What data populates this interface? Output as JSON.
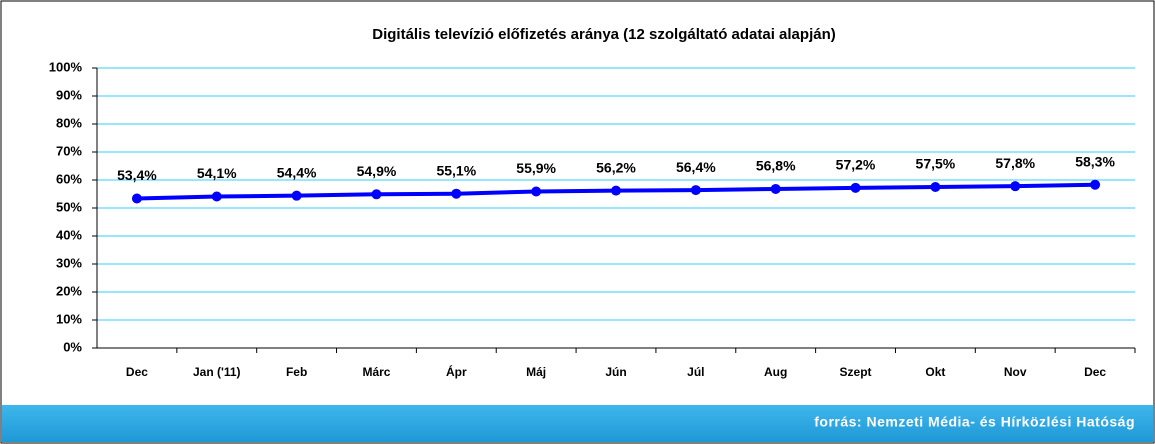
{
  "chart_data": {
    "type": "line",
    "title": "Digitális televízió előfizetés aránya (12 szolgáltató adatai alapján)",
    "categories": [
      "Dec",
      "Jan ('11)",
      "Feb",
      "Márc",
      "Ápr",
      "Máj",
      "Jún",
      "Júl",
      "Aug",
      "Szept",
      "Okt",
      "Nov",
      "Dec"
    ],
    "series": [
      {
        "name": "Digitális televízió előfizetés aránya",
        "color": "#0000ff",
        "values": [
          53.4,
          54.1,
          54.4,
          54.9,
          55.1,
          55.9,
          56.2,
          56.4,
          56.8,
          57.2,
          57.5,
          57.8,
          58.3
        ],
        "value_labels": [
          "53,4%",
          "54,1%",
          "54,4%",
          "54,9%",
          "55,1%",
          "55,9%",
          "56,2%",
          "56,4%",
          "56,8%",
          "57,2%",
          "57,5%",
          "57,8%",
          "58,3%"
        ]
      }
    ],
    "ylim": [
      0,
      100
    ],
    "yticks": [
      {
        "value": 0,
        "label": "0%"
      },
      {
        "value": 10,
        "label": "10%"
      },
      {
        "value": 20,
        "label": "20%"
      },
      {
        "value": 30,
        "label": "30%"
      },
      {
        "value": 40,
        "label": "40%"
      },
      {
        "value": 50,
        "label": "50%"
      },
      {
        "value": 60,
        "label": "60%"
      },
      {
        "value": 70,
        "label": "70%"
      },
      {
        "value": 80,
        "label": "80%"
      },
      {
        "value": 90,
        "label": "90%"
      },
      {
        "value": 100,
        "label": "100%"
      }
    ],
    "grid": true,
    "source": "forrás: Nemzeti Média- és Hírközlési Hatóság"
  }
}
